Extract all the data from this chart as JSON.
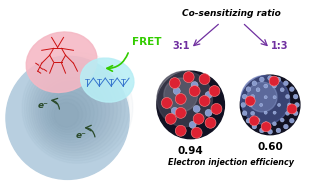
{
  "bg_color": "#ffffff",
  "title_text": "Co-sensitizing ratio",
  "ratio_left": "3:1",
  "ratio_right": "1:3",
  "ratio_color": "#7030A0",
  "arrow_color": "#7030A0",
  "fret_text": "FRET",
  "fret_color": "#33cc00",
  "val_left": "0.94",
  "val_right": "0.60",
  "val_color": "#000000",
  "eff_text": "Electron injection efficiency",
  "pink_ellipse_color": "#f5b8c4",
  "cyan_ellipse_color": "#b8eef5",
  "red_dye_color": "#cc1010",
  "blue_dye_color": "#3070cc",
  "big_sphere_color": "#b8cfe0",
  "eminus_color": "#2a4a2a",
  "red_dot_color": "#dd2233",
  "blue_dot_color": "#8899cc",
  "sphere_dark": "#222233",
  "sphere_mid": "#555566"
}
